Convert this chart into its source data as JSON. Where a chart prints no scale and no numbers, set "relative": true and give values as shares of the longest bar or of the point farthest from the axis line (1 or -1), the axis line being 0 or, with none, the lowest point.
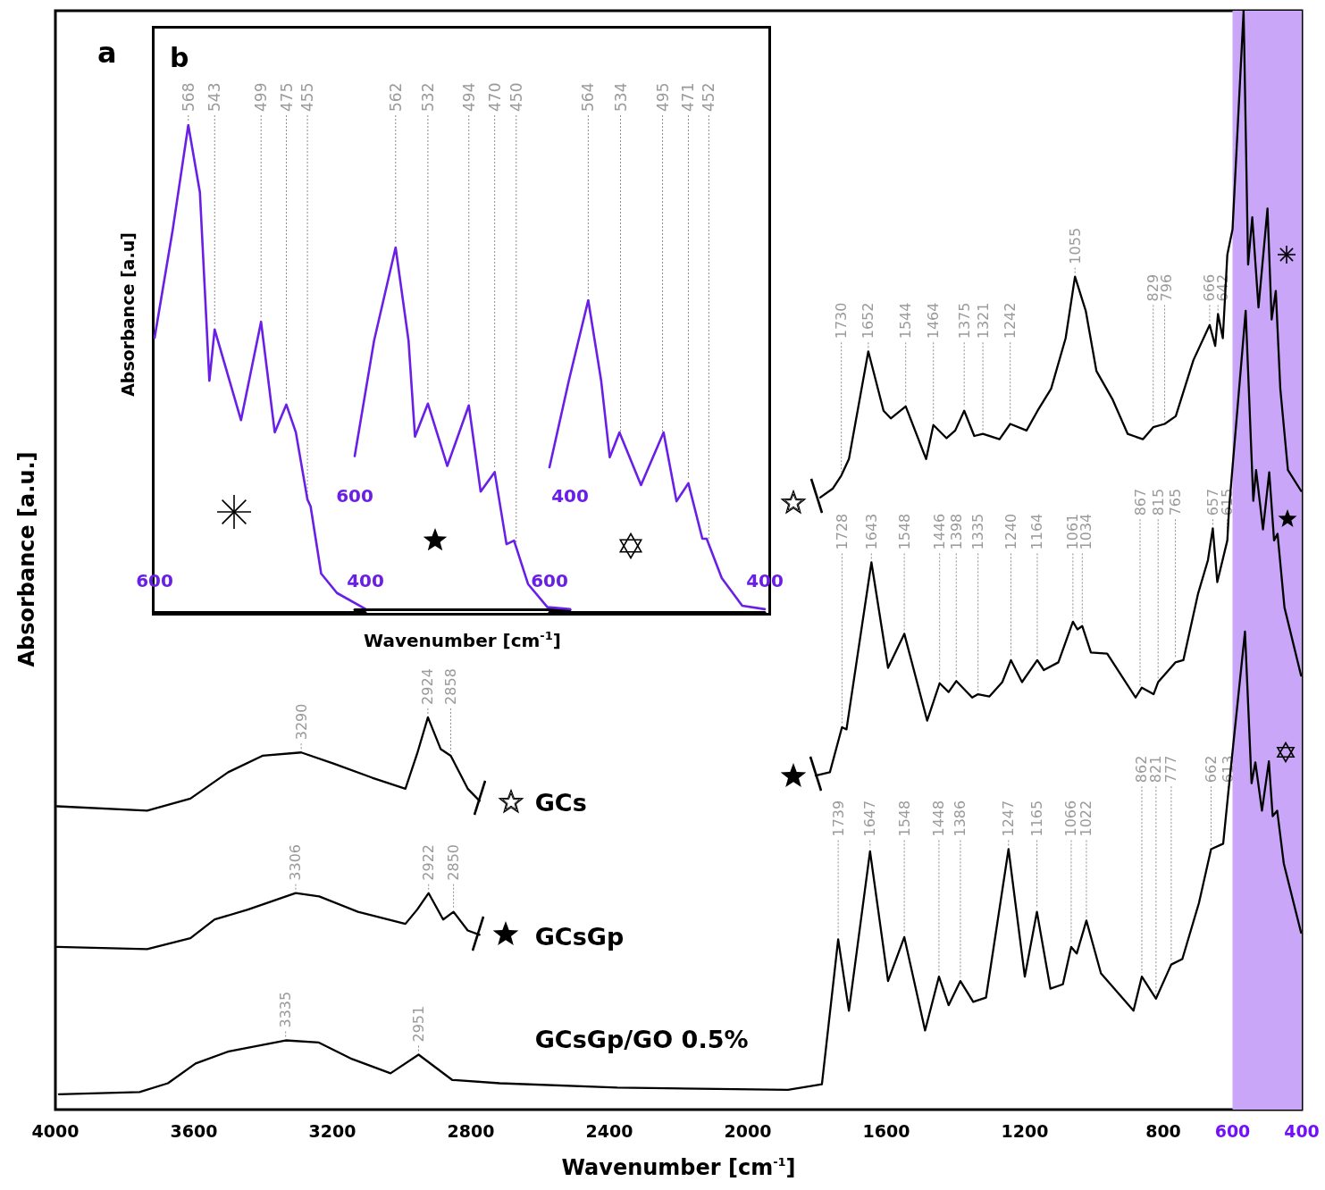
{
  "chart_data": [
    {
      "type": "line",
      "title": "a",
      "xlabel": "Wavenumber [cm$^{-1}$]",
      "ylabel": "Absorbance [a.u.]",
      "relative": true,
      "xlim": [
        4000,
        400
      ],
      "xticks": [
        4000,
        3600,
        3200,
        2800,
        2400,
        2000,
        1600,
        1200,
        800,
        600,
        400
      ],
      "marker": "none",
      "line_style": "solid",
      "legend": "bottom left",
      "bands": [
        {
          "axis": "x",
          "from": 600,
          "to": 400,
          "color": "#c9a6f8"
        }
      ],
      "series": [
        {
          "name": "GCs",
          "color": "#000000",
          "x": [
            3995,
            3735,
            3610,
            3501,
            3402,
            3290,
            3197,
            3085,
            2989,
            2955,
            2924,
            2887,
            2858,
            2809,
            2775,
            2000,
            1791,
            1755,
            1730,
            1708,
            1652,
            1608,
            1587,
            1544,
            1485,
            1464,
            1426,
            1401,
            1375,
            1346,
            1321,
            1273,
            1242,
            1195,
            1163,
            1124,
            1082,
            1055,
            1024,
            993,
            946,
            903,
            859,
            829,
            796,
            764,
            713,
            666,
            650,
            642,
            628,
            615,
            600,
            568,
            555,
            543,
            525,
            499,
            487,
            475,
            462,
            440,
            402
          ],
          "values": [
            0.276,
            0.272,
            0.283,
            0.307,
            0.322,
            0.325,
            0.315,
            0.302,
            0.292,
            0.324,
            0.357,
            0.328,
            0.322,
            0.292,
            0.281,
            null,
            0.557,
            0.565,
            0.577,
            0.592,
            0.69,
            0.636,
            0.629,
            0.64,
            0.592,
            0.623,
            0.611,
            0.618,
            0.636,
            0.613,
            0.615,
            0.61,
            0.624,
            0.618,
            0.636,
            0.656,
            0.702,
            0.758,
            0.727,
            0.672,
            0.646,
            0.615,
            0.61,
            0.621,
            0.624,
            0.631,
            0.682,
            0.714,
            0.695,
            0.724,
            0.702,
            0.778,
            0.801,
            1,
            0.769,
            0.812,
            0.73,
            0.82,
            0.719,
            0.745,
            0.656,
            0.582,
            0.563
          ]
        },
        {
          "name": "GCsGp",
          "color": "#000000",
          "x": [
            3995,
            3735,
            3610,
            3540,
            3444,
            3306,
            3238,
            3126,
            2989,
            2955,
            2922,
            2880,
            2850,
            2809,
            2775,
            2000,
            1804,
            1763,
            1728,
            1715,
            1643,
            1595,
            1548,
            1482,
            1446,
            1420,
            1398,
            1352,
            1335,
            1302,
            1265,
            1240,
            1208,
            1164,
            1145,
            1103,
            1061,
            1048,
            1034,
            1009,
            962,
            880,
            862,
            828,
            815,
            765,
            742,
            700,
            671,
            657,
            644,
            615,
            610,
            562,
            540,
            532,
            512,
            494,
            480,
            470,
            450,
            402
          ],
          "values": [
            0.148,
            0.146,
            0.156,
            0.173,
            0.182,
            0.197,
            0.194,
            0.18,
            0.169,
            0.182,
            0.197,
            0.173,
            0.18,
            0.163,
            0.159,
            null,
            0.304,
            0.307,
            0.348,
            0.346,
            0.498,
            0.402,
            0.433,
            0.354,
            0.388,
            0.38,
            0.39,
            0.375,
            0.378,
            0.376,
            0.389,
            0.409,
            0.389,
            0.409,
            0.4,
            0.407,
            0.444,
            0.437,
            0.44,
            0.416,
            0.415,
            0.375,
            0.384,
            0.378,
            0.389,
            0.407,
            0.409,
            0.469,
            0.5,
            0.529,
            0.48,
            0.518,
            0.547,
            0.727,
            0.554,
            0.582,
            0.528,
            0.58,
            0.518,
            0.524,
            0.457,
            0.395
          ]
        },
        {
          "name": "GCsGp/GO 0.5%",
          "color": "#000000",
          "x": [
            3990,
            3757,
            3675,
            3595,
            3499,
            3335,
            3239,
            3143,
            3032,
            2951,
            2854,
            2717,
            2377,
            1884,
            1786,
            1739,
            1708,
            1647,
            1595,
            1548,
            1488,
            1448,
            1420,
            1386,
            1349,
            1312,
            1247,
            1200,
            1165,
            1126,
            1090,
            1066,
            1050,
            1022,
            980,
            886,
            862,
            821,
            777,
            745,
            697,
            662,
            627,
            613,
            564,
            545,
            534,
            515,
            495,
            484,
            471,
            452,
            402
          ],
          "values": [
            0.014,
            0.016,
            0.024,
            0.042,
            0.053,
            0.063,
            0.061,
            0.046,
            0.033,
            0.05,
            0.027,
            0.024,
            0.02,
            0.018,
            0.023,
            0.155,
            0.09,
            0.235,
            0.117,
            0.157,
            0.072,
            0.121,
            0.095,
            0.117,
            0.098,
            0.102,
            0.237,
            0.121,
            0.18,
            0.11,
            0.114,
            0.148,
            0.142,
            0.172,
            0.124,
            0.09,
            0.121,
            0.101,
            0.132,
            0.137,
            0.188,
            0.237,
            0.242,
            0.286,
            0.435,
            0.297,
            0.316,
            0.272,
            0.317,
            0.267,
            0.272,
            0.224,
            0.161
          ]
        }
      ],
      "annotations": [
        {
          "text": "1730",
          "x": 1730,
          "y": 0.577
        },
        {
          "text": "1652",
          "x": 1652,
          "y": 0.69
        },
        {
          "text": "1544",
          "x": 1544,
          "y": 0.64
        },
        {
          "text": "1464",
          "x": 1464,
          "y": 0.623
        },
        {
          "text": "1375",
          "x": 1375,
          "y": 0.636
        },
        {
          "text": "1321",
          "x": 1321,
          "y": 0.615
        },
        {
          "text": "1242",
          "x": 1242,
          "y": 0.624
        },
        {
          "text": "1055",
          "x": 1055,
          "y": 0.758
        },
        {
          "text": "829",
          "x": 829,
          "y": 0.621
        },
        {
          "text": "796",
          "x": 796,
          "y": 0.624
        },
        {
          "text": "666",
          "x": 666,
          "y": 0.714
        },
        {
          "text": "642",
          "x": 642,
          "y": 0.724
        },
        {
          "text": "1728",
          "x": 1728,
          "y": 0.348
        },
        {
          "text": "1643",
          "x": 1643,
          "y": 0.498
        },
        {
          "text": "1548",
          "x": 1548,
          "y": 0.433
        },
        {
          "text": "1446",
          "x": 1446,
          "y": 0.388
        },
        {
          "text": "1398",
          "x": 1398,
          "y": 0.39
        },
        {
          "text": "1335",
          "x": 1335,
          "y": 0.378
        },
        {
          "text": "1240",
          "x": 1240,
          "y": 0.409
        },
        {
          "text": "1164",
          "x": 1164,
          "y": 0.409
        },
        {
          "text": "1061",
          "x": 1061,
          "y": 0.444
        },
        {
          "text": "1034",
          "x": 1034,
          "y": 0.44
        },
        {
          "text": "867",
          "x": 867,
          "y": 0.381
        },
        {
          "text": "815",
          "x": 815,
          "y": 0.389
        },
        {
          "text": "765",
          "x": 765,
          "y": 0.407
        },
        {
          "text": "657",
          "x": 657,
          "y": 0.529
        },
        {
          "text": "615",
          "x": 615,
          "y": 0.518
        },
        {
          "text": "1739",
          "x": 1739,
          "y": 0.155
        },
        {
          "text": "1647",
          "x": 1647,
          "y": 0.235
        },
        {
          "text": "1548",
          "x": 1548,
          "y": 0.157
        },
        {
          "text": "1448",
          "x": 1448,
          "y": 0.121
        },
        {
          "text": "1386",
          "x": 1386,
          "y": 0.117
        },
        {
          "text": "1247",
          "x": 1247,
          "y": 0.237
        },
        {
          "text": "1165",
          "x": 1165,
          "y": 0.18
        },
        {
          "text": "1066",
          "x": 1066,
          "y": 0.148
        },
        {
          "text": "1022",
          "x": 1022,
          "y": 0.172
        },
        {
          "text": "862",
          "x": 862,
          "y": 0.121
        },
        {
          "text": "821",
          "x": 821,
          "y": 0.101
        },
        {
          "text": "777",
          "x": 777,
          "y": 0.132
        },
        {
          "text": "662",
          "x": 662,
          "y": 0.237
        },
        {
          "text": "613",
          "x": 613,
          "y": 0.286
        },
        {
          "text": "3290",
          "x": 3290,
          "y": 0.325
        },
        {
          "text": "2924",
          "x": 2924,
          "y": 0.357
        },
        {
          "text": "2858",
          "x": 2858,
          "y": 0.322
        },
        {
          "text": "3306",
          "x": 3306,
          "y": 0.197
        },
        {
          "text": "2922",
          "x": 2922,
          "y": 0.197
        },
        {
          "text": "2850",
          "x": 2850,
          "y": 0.18
        },
        {
          "text": "3335",
          "x": 3335,
          "y": 0.063
        },
        {
          "text": "2951",
          "x": 2951,
          "y": 0.05
        }
      ]
    },
    {
      "type": "line",
      "title": "b",
      "ylabel": "Absorbance [a.u]",
      "relative": true,
      "xlim": [
        600,
        400
      ],
      "marker": "none",
      "line_style": "solid",
      "series": [
        {
          "color": "#6a1fe6",
          "x": [
            600,
            583,
            568,
            557,
            548,
            543,
            518,
            499,
            486,
            475,
            466,
            455,
            452,
            442,
            427,
            400
          ],
          "values": [
            0.563,
            0.782,
            1,
            0.862,
            0.475,
            0.58,
            0.394,
            0.596,
            0.369,
            0.426,
            0.369,
            0.231,
            0.217,
            0.079,
            0.039,
            0.006
          ]
        }
      ],
      "xticks": [
        600,
        400
      ],
      "annotations": [
        {
          "text": "568",
          "x": 568,
          "y": 1
        },
        {
          "text": "543",
          "x": 543,
          "y": 0.58
        },
        {
          "text": "499",
          "x": 499,
          "y": 0.596
        },
        {
          "text": "475",
          "x": 475,
          "y": 0.426
        },
        {
          "text": "455",
          "x": 455,
          "y": 0.231
        }
      ]
    },
    {
      "type": "line",
      "xlabel": "Wavenumber [cm$^{-1}$]",
      "relative": true,
      "xlim": [
        600,
        400
      ],
      "marker": "none",
      "line_style": "solid",
      "series": [
        {
          "color": "#6a1fe6",
          "x": [
            600,
            582,
            562,
            550,
            544,
            532,
            514,
            494,
            483,
            470,
            459,
            452,
            439,
            421,
            400
          ],
          "values": [
            0.424,
            0.743,
            1,
            0.743,
            0.478,
            0.569,
            0.397,
            0.564,
            0.326,
            0.38,
            0.181,
            0.191,
            0.071,
            0.007,
            0.002
          ]
        }
      ],
      "xticks": [
        600,
        400
      ],
      "annotations": [
        {
          "text": "562",
          "x": 562,
          "y": 1
        },
        {
          "text": "532",
          "x": 532,
          "y": 0.569
        },
        {
          "text": "494",
          "x": 494,
          "y": 0.564
        },
        {
          "text": "470",
          "x": 470,
          "y": 0.38
        },
        {
          "text": "450",
          "x": 450,
          "y": 0.173
        }
      ]
    },
    {
      "type": "line",
      "relative": true,
      "xlim": [
        600,
        400
      ],
      "marker": "none",
      "line_style": "solid",
      "series": [
        {
          "color": "#6a1fe6",
          "x": [
            600,
            582,
            564,
            552,
            544,
            535,
            515,
            494,
            482,
            471,
            458,
            454,
            440,
            421,
            400
          ],
          "values": [
            0.464,
            0.742,
            1,
            0.742,
            0.496,
            0.576,
            0.407,
            0.576,
            0.355,
            0.413,
            0.235,
            0.235,
            0.109,
            0.02,
            0.009
          ]
        }
      ],
      "xticks": [
        600,
        400
      ],
      "annotations": [
        {
          "text": "564",
          "x": 564,
          "y": 1
        },
        {
          "text": "534",
          "x": 534,
          "y": 0.568
        },
        {
          "text": "495",
          "x": 495,
          "y": 0.568
        },
        {
          "text": "471",
          "x": 471,
          "y": 0.413
        },
        {
          "text": "452",
          "x": 452,
          "y": 0.217
        }
      ]
    }
  ]
}
